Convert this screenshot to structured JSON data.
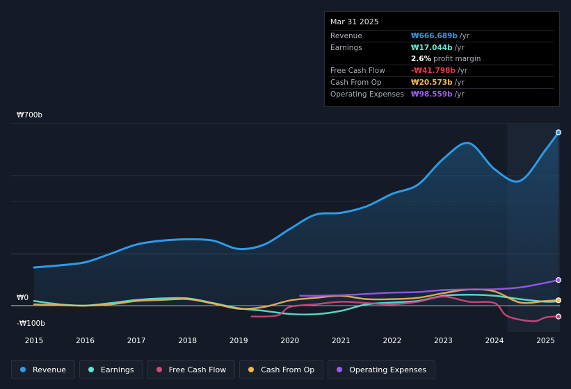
{
  "tooltip": {
    "date": "Mar 31 2025",
    "rows": [
      {
        "label": "Revenue",
        "value": "₩666.689b",
        "unit": "/yr",
        "color": "#2d9be8"
      },
      {
        "label": "Earnings",
        "value": "₩17.044b",
        "unit": "/yr",
        "color": "#5ee8d4"
      },
      {
        "label": "",
        "value": "2.6%",
        "unit": "profit margin",
        "color": "#ffffff"
      },
      {
        "label": "Free Cash Flow",
        "value": "-₩41.798b",
        "unit": "/yr",
        "color": "#e8384f"
      },
      {
        "label": "Cash From Op",
        "value": "₩20.573b",
        "unit": "/yr",
        "color": "#f2b457"
      },
      {
        "label": "Operating Expenses",
        "value": "₩98.559b",
        "unit": "/yr",
        "color": "#9b5cf0"
      }
    ]
  },
  "legend": [
    {
      "label": "Revenue",
      "color": "#2d9be8"
    },
    {
      "label": "Earnings",
      "color": "#5ee8d4"
    },
    {
      "label": "Free Cash Flow",
      "color": "#d2497c"
    },
    {
      "label": "Cash From Op",
      "color": "#f2b457"
    },
    {
      "label": "Operating Expenses",
      "color": "#9b5cf0"
    }
  ],
  "chart_data": {
    "type": "area",
    "ylim": [
      -100,
      700
    ],
    "y_tick_labels": [
      "₩700b",
      "₩0",
      "-₩100b"
    ],
    "x_tick_labels": [
      "2015",
      "2016",
      "2017",
      "2018",
      "2019",
      "2020",
      "2021",
      "2022",
      "2023",
      "2024",
      "2025"
    ],
    "highlight_from": 2024.25,
    "series": [
      {
        "name": "Revenue",
        "color": "#2d9be8",
        "fill": true,
        "end_marker": true,
        "points": [
          [
            2015,
            147
          ],
          [
            2015.5,
            155
          ],
          [
            2016,
            167
          ],
          [
            2016.5,
            200
          ],
          [
            2017,
            235
          ],
          [
            2017.5,
            250
          ],
          [
            2018,
            255
          ],
          [
            2018.5,
            250
          ],
          [
            2019,
            218
          ],
          [
            2019.5,
            235
          ],
          [
            2020,
            295
          ],
          [
            2020.5,
            350
          ],
          [
            2021,
            357
          ],
          [
            2021.5,
            382
          ],
          [
            2022,
            430
          ],
          [
            2022.5,
            465
          ],
          [
            2023,
            565
          ],
          [
            2023.5,
            625
          ],
          [
            2024,
            525
          ],
          [
            2024.5,
            480
          ],
          [
            2025,
            600
          ],
          [
            2025.25,
            666.689
          ]
        ]
      },
      {
        "name": "Earnings",
        "color": "#5ee8d4",
        "fill": false,
        "end_marker": false,
        "points": [
          [
            2015,
            18
          ],
          [
            2015.5,
            5
          ],
          [
            2016,
            0
          ],
          [
            2016.5,
            10
          ],
          [
            2017,
            22
          ],
          [
            2017.5,
            28
          ],
          [
            2018,
            28
          ],
          [
            2018.5,
            10
          ],
          [
            2019,
            -10
          ],
          [
            2019.5,
            -20
          ],
          [
            2020,
            -32
          ],
          [
            2020.5,
            -33
          ],
          [
            2021,
            -20
          ],
          [
            2021.5,
            5
          ],
          [
            2022,
            12
          ],
          [
            2022.5,
            18
          ],
          [
            2023,
            38
          ],
          [
            2023.5,
            42
          ],
          [
            2024,
            38
          ],
          [
            2024.5,
            25
          ],
          [
            2025,
            15
          ],
          [
            2025.25,
            17.044
          ]
        ]
      },
      {
        "name": "Free Cash Flow",
        "color": "#d2497c",
        "fill": false,
        "end_marker": true,
        "points": [
          [
            2019.25,
            -42
          ],
          [
            2019.75,
            -38
          ],
          [
            2020,
            -5
          ],
          [
            2020.5,
            5
          ],
          [
            2021,
            15
          ],
          [
            2021.5,
            10
          ],
          [
            2022,
            5
          ],
          [
            2022.5,
            15
          ],
          [
            2023,
            35
          ],
          [
            2023.5,
            15
          ],
          [
            2024,
            10
          ],
          [
            2024.25,
            -40
          ],
          [
            2024.75,
            -60
          ],
          [
            2025,
            -45
          ],
          [
            2025.25,
            -41.798
          ]
        ]
      },
      {
        "name": "Cash From Op",
        "color": "#f2b457",
        "fill": false,
        "end_marker": true,
        "points": [
          [
            2015,
            5
          ],
          [
            2015.5,
            2
          ],
          [
            2016,
            0
          ],
          [
            2016.5,
            5
          ],
          [
            2017,
            18
          ],
          [
            2017.5,
            22
          ],
          [
            2018,
            25
          ],
          [
            2018.5,
            8
          ],
          [
            2019,
            -12
          ],
          [
            2019.5,
            -5
          ],
          [
            2020,
            20
          ],
          [
            2020.5,
            30
          ],
          [
            2021,
            38
          ],
          [
            2021.5,
            25
          ],
          [
            2022,
            25
          ],
          [
            2022.5,
            30
          ],
          [
            2023,
            48
          ],
          [
            2023.5,
            62
          ],
          [
            2024,
            55
          ],
          [
            2024.5,
            12
          ],
          [
            2025,
            18
          ],
          [
            2025.25,
            20.573
          ]
        ]
      },
      {
        "name": "Operating Expenses",
        "color": "#9b5cf0",
        "fill": false,
        "end_marker": true,
        "points": [
          [
            2020.2,
            38
          ],
          [
            2020.5,
            38
          ],
          [
            2021,
            40
          ],
          [
            2021.5,
            45
          ],
          [
            2022,
            50
          ],
          [
            2022.5,
            52
          ],
          [
            2023,
            60
          ],
          [
            2023.5,
            62
          ],
          [
            2024,
            63
          ],
          [
            2024.5,
            70
          ],
          [
            2025,
            88
          ],
          [
            2025.25,
            98.559
          ]
        ]
      }
    ]
  }
}
